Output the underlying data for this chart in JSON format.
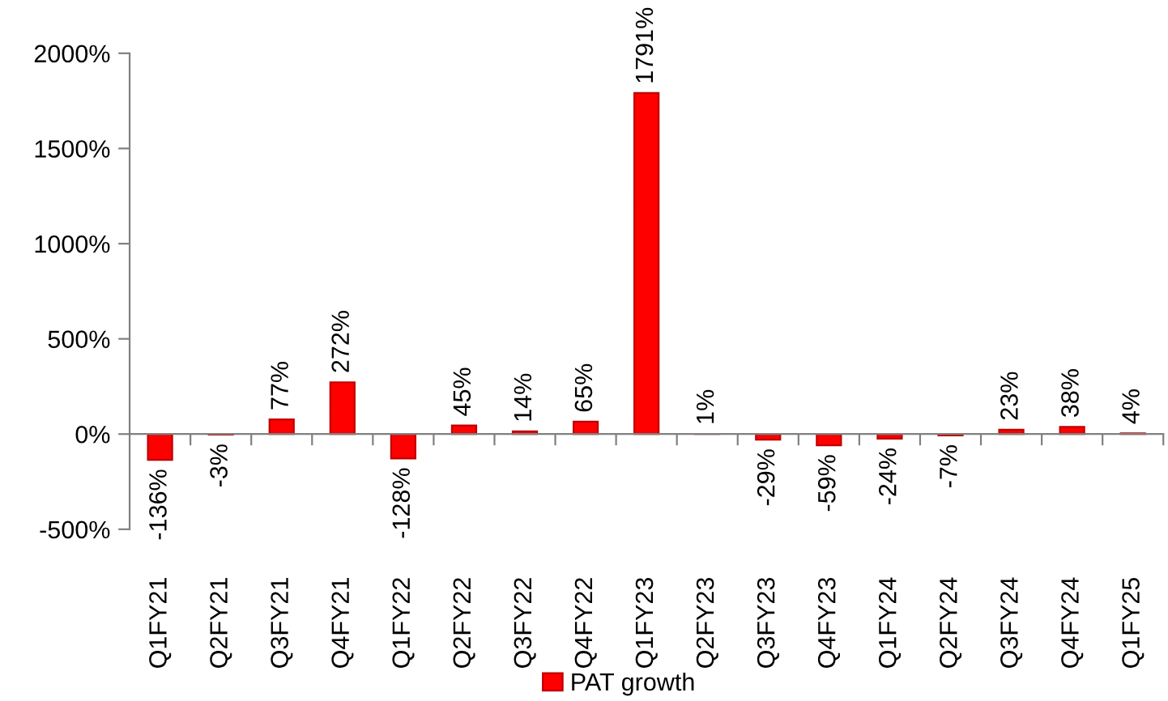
{
  "chart_data": {
    "type": "bar",
    "categories": [
      "Q1FY21",
      "Q2FY21",
      "Q3FY21",
      "Q4FY21",
      "Q1FY22",
      "Q2FY22",
      "Q3FY22",
      "Q4FY22",
      "Q1FY23",
      "Q2FY23",
      "Q3FY23",
      "Q4FY23",
      "Q1FY24",
      "Q2FY24",
      "Q3FY24",
      "Q4FY24",
      "Q1FY25"
    ],
    "series": [
      {
        "name": "PAT growth",
        "color": "#ff0000",
        "values": [
          -136,
          -3,
          77,
          272,
          -128,
          45,
          14,
          65,
          1791,
          1,
          -29,
          -59,
          -24,
          -7,
          23,
          38,
          4
        ],
        "value_labels": [
          "-136%",
          "-3%",
          "77%",
          "272%",
          "-128%",
          "45%",
          "14%",
          "65%",
          "1791%",
          "1%",
          "-29%",
          "-59%",
          "-24%",
          "-7%",
          "23%",
          "38%",
          "4%"
        ]
      }
    ],
    "ylim": [
      -500,
      2000
    ],
    "yticks": [
      {
        "value": -500,
        "label": "-500%"
      },
      {
        "value": 0,
        "label": "0%"
      },
      {
        "value": 500,
        "label": "500%"
      },
      {
        "value": 1000,
        "label": "1000%"
      },
      {
        "value": 1500,
        "label": "1500%"
      },
      {
        "value": 2000,
        "label": "2000%"
      }
    ],
    "legend": "bottom"
  }
}
